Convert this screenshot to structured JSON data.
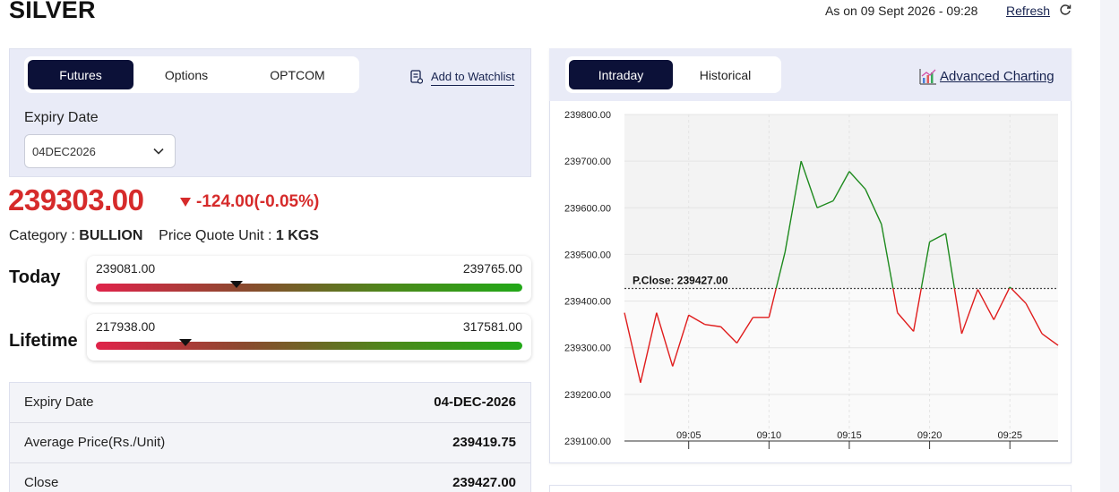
{
  "header": {
    "symbol": "SILVER",
    "as_on": "As on 09 Sept 2026 - 09:28",
    "refresh_label": "Refresh"
  },
  "left": {
    "tabs": [
      {
        "label": "Futures",
        "active": true
      },
      {
        "label": "Options",
        "active": false
      },
      {
        "label": "OPTCOM",
        "active": false
      }
    ],
    "watchlist_label": "Add to Watchlist",
    "expiry_label": "Expiry Date",
    "expiry_value": "04DEC2026",
    "price": "239303.00",
    "change": "-124.00(-0.05%)",
    "category_label": "Category : ",
    "category_value": "BULLION",
    "unit_label": "Price Quote Unit : ",
    "unit_value": "1 KGS",
    "today": {
      "label": "Today",
      "low": "239081.00",
      "high": "239765.00",
      "marker_fraction": 0.33
    },
    "lifetime": {
      "label": "Lifetime",
      "low": "217938.00",
      "high": "317581.00",
      "marker_fraction": 0.21
    },
    "details": [
      {
        "key": "Expiry Date",
        "value": "04-DEC-2026"
      },
      {
        "key": "Average Price(Rs./Unit)",
        "value": "239419.75"
      },
      {
        "key": "Close",
        "value": "239427.00"
      }
    ]
  },
  "right": {
    "tabs": [
      {
        "label": "Intraday",
        "active": true
      },
      {
        "label": "Historical",
        "active": false
      }
    ],
    "advanced_label": "Advanced Charting"
  },
  "colors": {
    "navy": "#0c1138",
    "down_red": "#d62b2b",
    "line_up": "#1e8a1e",
    "line_down": "#e01c1c",
    "panel_bg": "#e9ebf7"
  },
  "chart_data": {
    "type": "line",
    "ylim": [
      239100,
      239800
    ],
    "yticks": [
      "239800.00",
      "239700.00",
      "239600.00",
      "239500.00",
      "239400.00",
      "239300.00",
      "239200.00",
      "239100.00"
    ],
    "xticks": [
      "09:05",
      "09:10",
      "09:15",
      "09:20",
      "09:25"
    ],
    "reference": {
      "label": "P.Close: 239427.00",
      "value": 239427
    },
    "x": [
      "09:01",
      "09:02",
      "09:03",
      "09:04",
      "09:05",
      "09:06",
      "09:07",
      "09:08",
      "09:09",
      "09:10",
      "09:11",
      "09:12",
      "09:13",
      "09:14",
      "09:15",
      "09:16",
      "09:17",
      "09:18",
      "09:19",
      "09:20",
      "09:21",
      "09:22",
      "09:23",
      "09:24",
      "09:25",
      "09:26",
      "09:27",
      "09:28"
    ],
    "values": [
      239375,
      239225,
      239375,
      239260,
      239370,
      239350,
      239345,
      239310,
      239365,
      239365,
      239505,
      239700,
      239600,
      239615,
      239678,
      239640,
      239565,
      239375,
      239335,
      239527,
      239545,
      239330,
      239425,
      239360,
      239430,
      239395,
      239330,
      239305
    ]
  }
}
